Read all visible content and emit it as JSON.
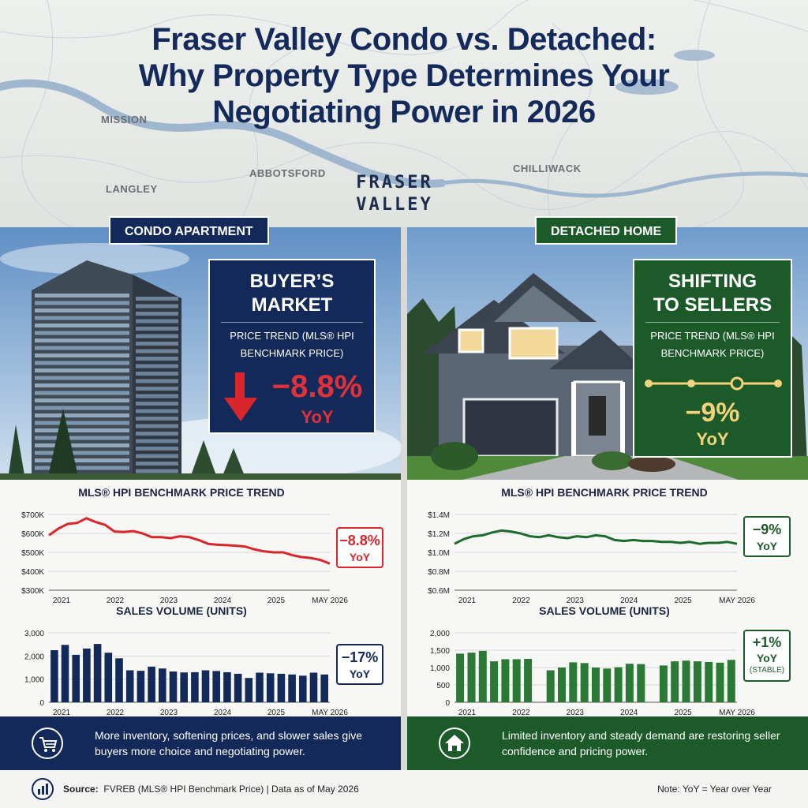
{
  "header": {
    "title_line1": "Fraser Valley Condo vs. Detached:",
    "title_line2": "Why Property Type Determines Your",
    "title_line3": "Negotiating Power in 2026",
    "map_labels": [
      "MISSION",
      "LANGLEY",
      "ABBOTSFORD",
      "CHILLIWACK"
    ],
    "region_line1": "FRASER",
    "region_line2": "VALLEY"
  },
  "condo": {
    "pill": "CONDO APARTMENT",
    "callout_title1": "BUYER’S",
    "callout_title2": "MARKET",
    "callout_sub1": "PRICE TREND (MLS® HPI",
    "callout_sub2": "BENCHMARK PRICE)",
    "callout_value": "−8.8%",
    "callout_yoy": "YoY",
    "price_badge_value": "−8.8%",
    "price_badge_yoy": "YoY",
    "sales_badge_value": "−17%",
    "sales_badge_yoy": "YoY",
    "footer_text": "More inventory, softening prices, and slower sales give buyers more choice and negotiating power."
  },
  "detached": {
    "pill": "DETACHED HOME",
    "callout_title1": "SHIFTING",
    "callout_title2": "TO SELLERS",
    "callout_sub1": "PRICE TREND (MLS® HPI",
    "callout_sub2": "BENCHMARK PRICE)",
    "callout_value": "−9%",
    "callout_yoy": "YoY",
    "price_badge_value": "−9%",
    "price_badge_yoy": "YoY",
    "sales_badge_value": "+1%",
    "sales_badge_yoy": "YoY",
    "sales_badge_note": "(STABLE)",
    "footer_text": "Limited inventory and steady demand are restoring seller confidence and pricing power."
  },
  "source": {
    "label": "Source:",
    "text": "FVREB (MLS® HPI Benchmark Price)  |  Data as of May 2026",
    "note": "Note: YoY = Year over Year"
  },
  "colors": {
    "navy": "#13295a",
    "green": "#1d5a2a",
    "red": "#d9262c",
    "gold": "#f2d27a"
  },
  "chart_data": [
    {
      "type": "line",
      "title": "MLS® HPI BENCHMARK PRICE TREND",
      "series": [
        {
          "values": [
            590,
            625,
            650,
            655,
            680,
            660,
            645,
            610,
            608,
            612,
            600,
            580,
            580,
            575,
            585,
            580,
            565,
            545,
            540,
            538,
            535,
            530,
            515,
            505,
            500,
            500,
            485,
            475,
            470,
            460,
            440
          ]
        }
      ],
      "xticks": [
        "2021",
        "2022",
        "2023",
        "2024",
        "2025",
        "MAY 2026"
      ],
      "yticks": [
        "$700K",
        "$600K",
        "$500K",
        "$400K",
        "$300K"
      ],
      "ylim": [
        300,
        700
      ],
      "color": "#d9262c"
    },
    {
      "type": "bar",
      "title": "SALES VOLUME (UNITS)",
      "values": [
        2250,
        2480,
        2050,
        2320,
        2520,
        2140,
        1900,
        1380,
        1360,
        1540,
        1460,
        1330,
        1290,
        1300,
        1380,
        1350,
        1300,
        1230,
        1050,
        1280,
        1250,
        1230,
        1200,
        1150,
        1280,
        1200
      ],
      "xticks": [
        "2021",
        "2022",
        "2023",
        "2024",
        "2025",
        "MAY 2026"
      ],
      "yticks": [
        "3,000",
        "2,000",
        "1,000",
        "0"
      ],
      "ylim": [
        0,
        3000
      ],
      "color": "#13295a"
    },
    {
      "type": "line",
      "title": "MLS® HPI BENCHMARK PRICE TREND",
      "series": [
        {
          "values": [
            1.09,
            1.14,
            1.17,
            1.18,
            1.21,
            1.23,
            1.22,
            1.2,
            1.17,
            1.16,
            1.18,
            1.16,
            1.15,
            1.17,
            1.16,
            1.18,
            1.17,
            1.13,
            1.12,
            1.13,
            1.12,
            1.12,
            1.11,
            1.11,
            1.1,
            1.11,
            1.09,
            1.1,
            1.1,
            1.11,
            1.09
          ]
        }
      ],
      "xticks": [
        "2021",
        "2022",
        "2023",
        "2024",
        "2025",
        "MAY 2026"
      ],
      "yticks": [
        "$1.4M",
        "$1.2M",
        "$1.0M",
        "$0.8M",
        "$0.6M"
      ],
      "ylim": [
        0.6,
        1.4
      ],
      "color": "#1d6b2c"
    },
    {
      "type": "bar",
      "title": "SALES VOLUME (UNITS)",
      "values": [
        1400,
        1430,
        1480,
        1180,
        1240,
        1240,
        1250,
        null,
        920,
        1000,
        1150,
        1130,
        1000,
        970,
        1010,
        1110,
        1100,
        null,
        1060,
        1180,
        1200,
        1180,
        1160,
        1140,
        1220
      ],
      "xticks": [
        "2021",
        "2022",
        "2023",
        "2024",
        "2025",
        "MAY 2026"
      ],
      "yticks": [
        "2,000",
        "1,500",
        "1,000",
        "500",
        "0"
      ],
      "ylim": [
        0,
        2000
      ],
      "color": "#2a7a35"
    }
  ]
}
